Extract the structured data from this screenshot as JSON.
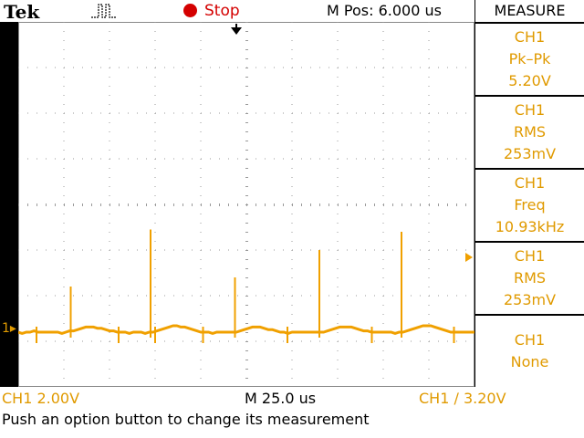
{
  "header": {
    "brand": "Tek",
    "acq_state": "Stop",
    "position": "M Pos: 6.000 us",
    "trigger_icon": "pulse-icon"
  },
  "side_menu": {
    "title": "MEASURE",
    "items": [
      {
        "source": "CH1",
        "type": "Pk–Pk",
        "value": "5.20V"
      },
      {
        "source": "CH1",
        "type": "RMS",
        "value": "253mV"
      },
      {
        "source": "CH1",
        "type": "Freq",
        "value": "10.93kHz"
      },
      {
        "source": "CH1",
        "type": "RMS",
        "value": "253mV"
      },
      {
        "source": "CH1",
        "type": "None",
        "value": ""
      }
    ]
  },
  "footer": {
    "ch1_scale": "CH1  2.00V",
    "timebase": "M 25.0 us",
    "trigger": "CH1 ∕ 3.20V",
    "status": "Push an option button to change its measurement"
  },
  "display": {
    "channel_marker": "1",
    "trace_color": "#f0a000",
    "trace_samples": [
      0,
      -1,
      0,
      0,
      1,
      0,
      0,
      0,
      0,
      0,
      0,
      -1,
      0,
      1,
      1,
      2,
      3,
      4,
      4,
      4,
      3,
      3,
      2,
      1,
      1,
      0,
      0,
      0,
      -1,
      0,
      0,
      0,
      -1,
      0,
      0,
      1,
      2,
      3,
      4,
      5,
      5,
      4,
      4,
      3,
      2,
      1,
      0,
      0,
      0,
      -1,
      0,
      0,
      0,
      0,
      0,
      0,
      1,
      2,
      3,
      4,
      4,
      4,
      3,
      2,
      2,
      1,
      0,
      0,
      -1,
      0,
      0,
      0,
      0,
      0,
      0,
      0,
      0,
      0,
      1,
      2,
      3,
      4,
      4,
      4,
      4,
      3,
      2,
      1,
      1,
      0,
      0,
      0,
      0,
      0,
      0,
      -1,
      0,
      0,
      1,
      2,
      3,
      4,
      5,
      5,
      5,
      4,
      3,
      2,
      1,
      0,
      0,
      0,
      0,
      0,
      0,
      0
    ],
    "spikes": [
      {
        "x_div": 1.15,
        "height_div": 1.0
      },
      {
        "x_div": 2.9,
        "height_div": 2.25
      },
      {
        "x_div": 4.75,
        "height_div": 1.2
      },
      {
        "x_div": 6.6,
        "height_div": 1.8
      },
      {
        "x_div": 8.4,
        "height_div": 2.2
      }
    ],
    "small_dips": [
      {
        "x_div": 0.4
      },
      {
        "x_div": 2.2
      },
      {
        "x_div": 3.0
      },
      {
        "x_div": 4.05
      },
      {
        "x_div": 5.9
      },
      {
        "x_div": 7.75
      },
      {
        "x_div": 9.55
      }
    ]
  }
}
